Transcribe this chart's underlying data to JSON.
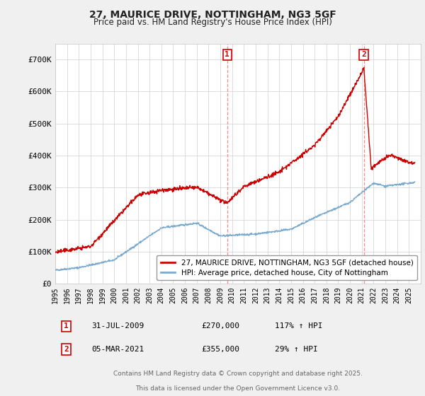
{
  "title": "27, MAURICE DRIVE, NOTTINGHAM, NG3 5GF",
  "subtitle": "Price paid vs. HM Land Registry's House Price Index (HPI)",
  "ytick_labels": [
    "£0",
    "£100K",
    "£200K",
    "£300K",
    "£400K",
    "£500K",
    "£600K",
    "£700K"
  ],
  "yticks": [
    0,
    100000,
    200000,
    300000,
    400000,
    500000,
    600000,
    700000
  ],
  "ylim": [
    0,
    750000
  ],
  "marker1_date": 2009.58,
  "marker2_date": 2021.17,
  "legend_line1": "27, MAURICE DRIVE, NOTTINGHAM, NG3 5GF (detached house)",
  "legend_line2": "HPI: Average price, detached house, City of Nottingham",
  "line1_color": "#cc0000",
  "line2_color": "#7aabcf",
  "vline_color": "#ff8888",
  "marker_color": "#cc0000",
  "footer_line1": "Contains HM Land Registry data © Crown copyright and database right 2025.",
  "footer_line2": "This data is licensed under the Open Government Licence v3.0.",
  "background_color": "#f0f0f0",
  "plot_background": "#ffffff",
  "xmin": 1995,
  "xmax": 2026,
  "ann1_date": "31-JUL-2009",
  "ann1_price": "£270,000",
  "ann1_hpi": "117% ↑ HPI",
  "ann2_date": "05-MAR-2021",
  "ann2_price": "£355,000",
  "ann2_hpi": "29% ↑ HPI"
}
